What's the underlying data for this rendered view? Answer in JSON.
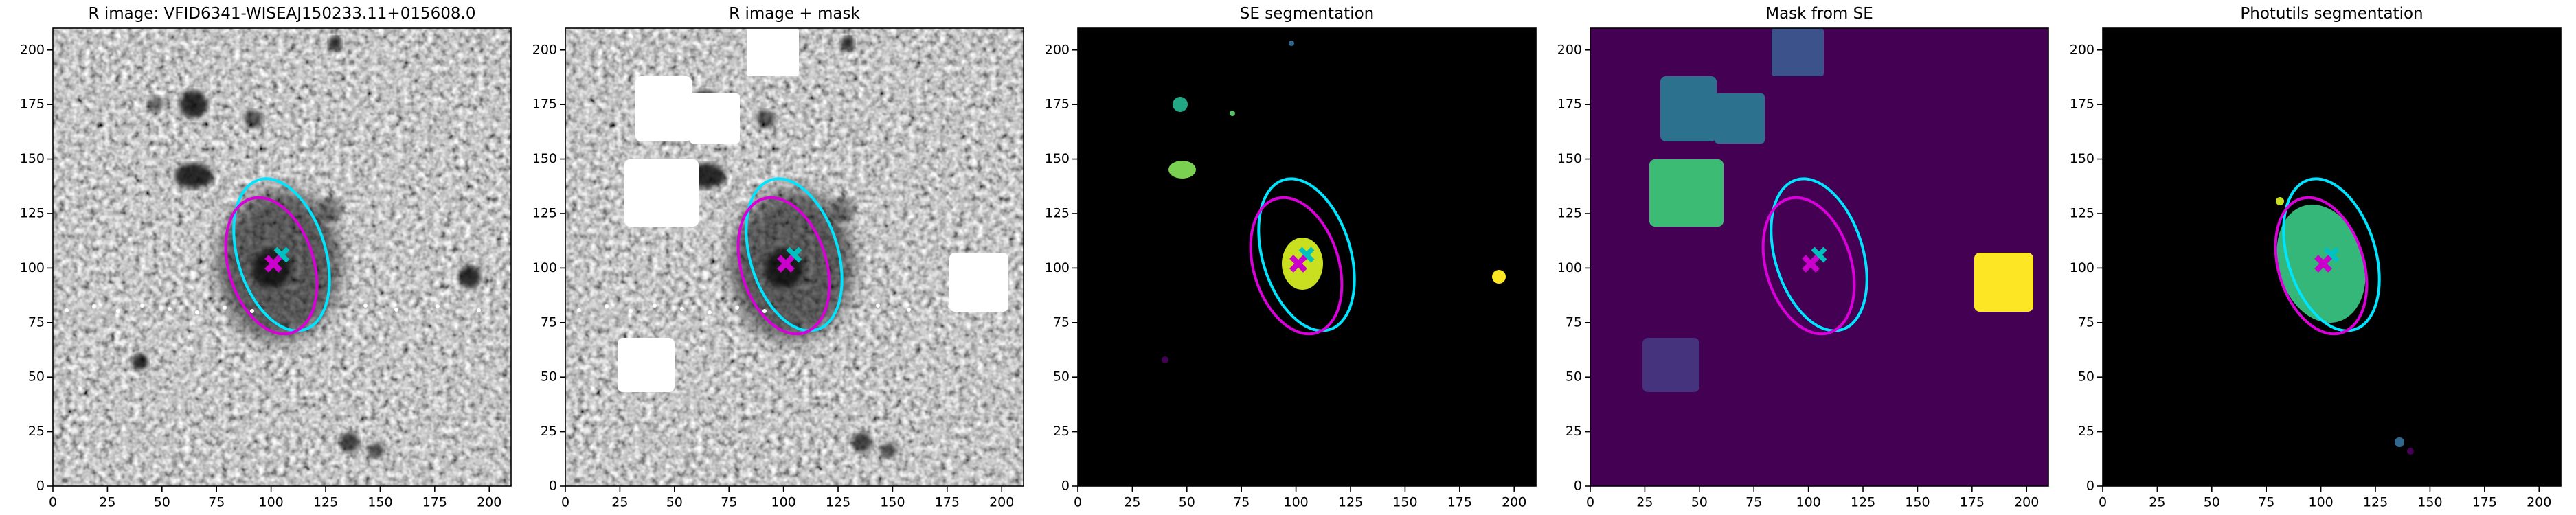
{
  "chart_data": [
    {
      "type": "image",
      "title": "R image: VFID6341-WISEAJ150233.11+015608.0",
      "xlim": [
        0,
        210
      ],
      "ylim": [
        0,
        210
      ],
      "xticks": [
        0,
        25,
        50,
        75,
        100,
        125,
        150,
        175,
        200
      ],
      "yticks": [
        0,
        25,
        50,
        75,
        100,
        125,
        150,
        175,
        200
      ]
    },
    {
      "type": "image",
      "title": "R image + mask",
      "xlim": [
        0,
        210
      ],
      "ylim": [
        0,
        210
      ],
      "xticks": [
        0,
        25,
        50,
        75,
        100,
        125,
        150,
        175,
        200
      ],
      "yticks": [
        0,
        25,
        50,
        75,
        100,
        125,
        150,
        175,
        200
      ]
    },
    {
      "type": "image",
      "title": "SE segmentation",
      "xlim": [
        0,
        210
      ],
      "ylim": [
        0,
        210
      ],
      "xticks": [
        0,
        25,
        50,
        75,
        100,
        125,
        150,
        175,
        200
      ],
      "yticks": [
        0,
        25,
        50,
        75,
        100,
        125,
        150,
        175,
        200
      ]
    },
    {
      "type": "image",
      "title": "Mask from SE",
      "xlim": [
        0,
        210
      ],
      "ylim": [
        0,
        210
      ],
      "xticks": [
        0,
        25,
        50,
        75,
        100,
        125,
        150,
        175,
        200
      ],
      "yticks": [
        0,
        25,
        50,
        75,
        100,
        125,
        150,
        175,
        200
      ]
    },
    {
      "type": "image",
      "title": "Photutils segmentation",
      "xlim": [
        0,
        210
      ],
      "ylim": [
        0,
        210
      ],
      "xticks": [
        0,
        25,
        50,
        75,
        100,
        125,
        150,
        175,
        200
      ],
      "yticks": [
        0,
        25,
        50,
        75,
        100,
        125,
        150,
        175,
        200
      ]
    }
  ]
}
